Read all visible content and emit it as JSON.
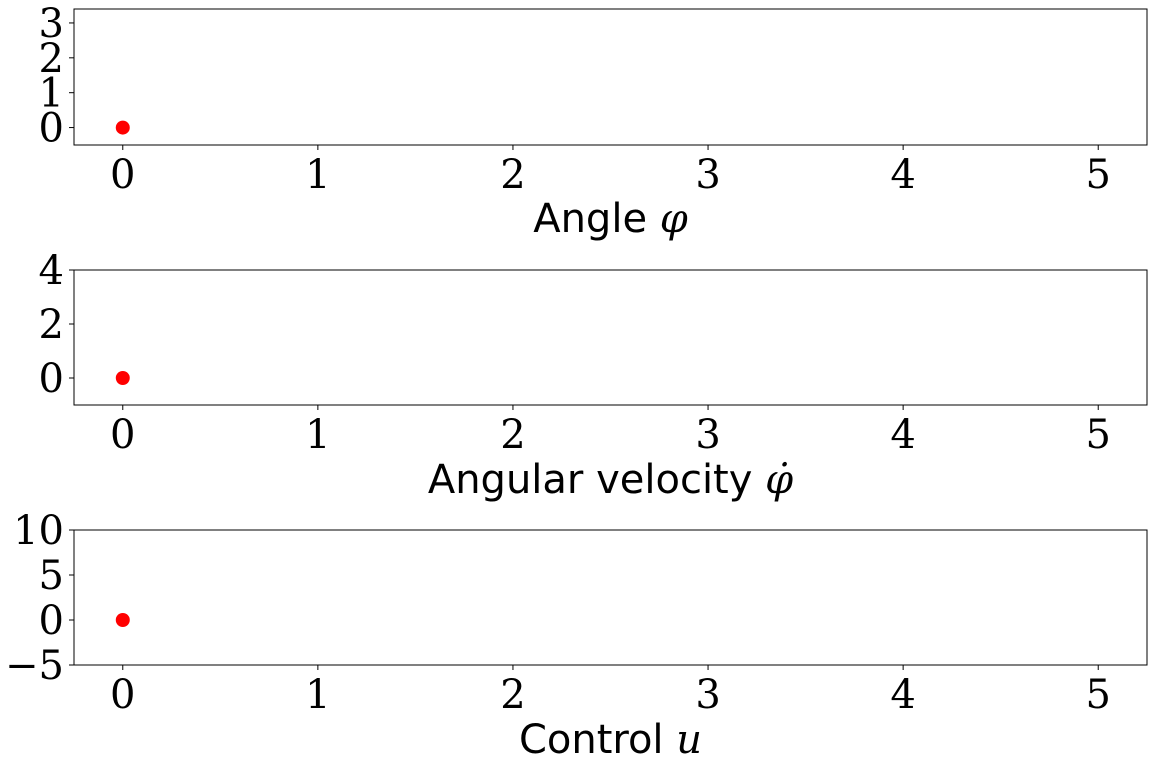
{
  "chart_data": [
    {
      "type": "scatter",
      "xlabel": "Angle φ",
      "xlabel_text": "Angle",
      "xlabel_symbol": "φ",
      "xlim": [
        -0.25,
        5.25
      ],
      "ylim": [
        -0.5,
        3.4
      ],
      "xticks": [
        0,
        1,
        2,
        3,
        4,
        5
      ],
      "yticks": [
        0,
        1,
        2,
        3
      ],
      "series": [
        {
          "x": [
            0
          ],
          "y": [
            0
          ]
        }
      ],
      "grid": false
    },
    {
      "type": "scatter",
      "xlabel": "Angular velocity φ̇",
      "xlabel_text": "Angular velocity",
      "xlabel_symbol": "φ̇",
      "xlim": [
        -0.25,
        5.25
      ],
      "ylim": [
        -1,
        4
      ],
      "xticks": [
        0,
        1,
        2,
        3,
        4,
        5
      ],
      "yticks": [
        0,
        2,
        4
      ],
      "series": [
        {
          "x": [
            0
          ],
          "y": [
            0
          ]
        }
      ],
      "grid": false
    },
    {
      "type": "scatter",
      "xlabel": "Control u",
      "xlabel_text": "Control",
      "xlabel_symbol": "u",
      "xlim": [
        -0.25,
        5.25
      ],
      "ylim": [
        -5,
        10
      ],
      "xticks": [
        0,
        1,
        2,
        3,
        4,
        5
      ],
      "yticks": [
        -5,
        0,
        5,
        10
      ],
      "ytick_labels": [
        "−5",
        "0",
        "5",
        "10"
      ],
      "series": [
        {
          "x": [
            0
          ],
          "y": [
            0
          ]
        }
      ],
      "grid": false
    }
  ],
  "colors": {
    "marker": "#ff0000",
    "axes": "#000000"
  }
}
